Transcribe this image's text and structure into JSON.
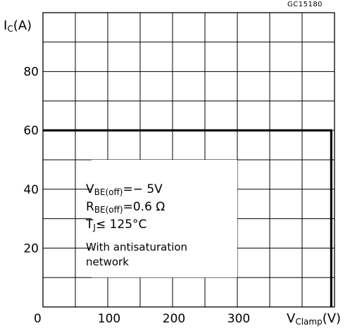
{
  "figure_code": "GC15180",
  "chart_data": {
    "type": "line",
    "xlabel": {
      "main": "V",
      "sub": "Clamp",
      "unit": "(V)"
    },
    "ylabel": {
      "main": "I",
      "sub": "C",
      "unit": "(A)"
    },
    "xlim": [
      0,
      450
    ],
    "ylim": [
      0,
      100
    ],
    "x_ticks": [
      0,
      100,
      200,
      300
    ],
    "x_tick_labels": [
      "0",
      "100",
      "200",
      "300"
    ],
    "y_ticks": [
      20,
      40,
      60,
      80
    ],
    "y_tick_labels": [
      "20",
      "40",
      "60",
      "80"
    ],
    "grid": {
      "x_step": 50,
      "y_step": 10,
      "on": true
    },
    "series": [
      {
        "points": [
          [
            0,
            60
          ],
          [
            445,
            60
          ],
          [
            445,
            0
          ]
        ]
      }
    ],
    "annotation": {
      "vbe": {
        "main": "V",
        "sub": "BE(off)",
        "value": "=− 5V"
      },
      "rbe": {
        "main": "R",
        "sub": "BE(off)",
        "value": "=0.6 Ω"
      },
      "tj": {
        "main": "T",
        "sub": "J",
        "value": "≤ 125°C"
      },
      "line4": "With antisaturation",
      "line5": "network"
    }
  }
}
